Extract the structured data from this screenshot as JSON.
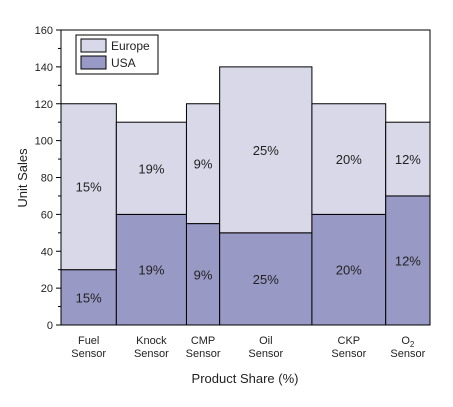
{
  "chart_data": {
    "type": "bar",
    "variant": "variable-width stacked (marimekko)",
    "title": "",
    "xlabel": "Product Share (%)",
    "ylabel": "Unit Sales",
    "ylim": [
      0,
      160
    ],
    "yticks": [
      0,
      20,
      40,
      60,
      80,
      100,
      120,
      140,
      160
    ],
    "grid": false,
    "legend_position": "top-left",
    "categories": [
      {
        "label_line1": "Fuel",
        "label_line2": "Sensor",
        "share": 15,
        "share_label": "15%"
      },
      {
        "label_line1": "Knock",
        "label_line2": "Sensor",
        "share": 19,
        "share_label": "19%"
      },
      {
        "label_line1": "CMP",
        "label_line2": "Sensor",
        "share": 9,
        "share_label": "9%"
      },
      {
        "label_line1": "Oil",
        "label_line2": "Sensor",
        "share": 25,
        "share_label": "25%"
      },
      {
        "label_line1": "CKP",
        "label_line2": "Sensor",
        "share": 20,
        "share_label": "20%"
      },
      {
        "label_line1": "O",
        "label_sub": "2",
        "label_line2": "Sensor",
        "share": 12,
        "share_label": "12%"
      }
    ],
    "series": [
      {
        "name": "USA",
        "color": "#9999c6",
        "values": [
          30,
          60,
          55,
          50,
          60,
          70
        ]
      },
      {
        "name": "Europe",
        "color": "#d8d8e8",
        "values": [
          90,
          50,
          65,
          90,
          60,
          40
        ]
      }
    ]
  }
}
